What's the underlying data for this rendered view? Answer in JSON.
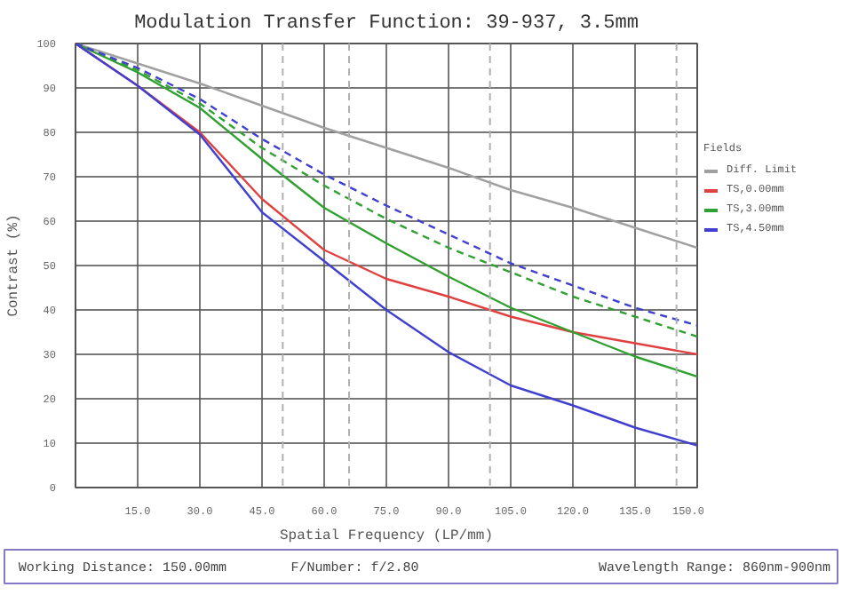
{
  "chart_data": {
    "type": "line",
    "title": "Modulation Transfer Function: 39-937, 3.5mm",
    "xlabel": "Spatial Frequency (LP/mm)",
    "ylabel": "Contrast (%)",
    "legend_title": "Fields",
    "x": [
      0,
      15,
      30,
      45,
      60,
      75,
      90,
      105,
      120,
      135,
      150
    ],
    "series": [
      {
        "name": "Diff. Limit",
        "color": "#a0a0a0",
        "line_style": "solid",
        "values": [
          100,
          95.5,
          91,
          86,
          81,
          76.5,
          72,
          67,
          63,
          58.5,
          54
        ]
      },
      {
        "name": "TS,0.00mm",
        "color": "#e04040",
        "line_style": "solid",
        "values": [
          100,
          90.5,
          80,
          65,
          53.5,
          47,
          43,
          38.5,
          35,
          32.5,
          30
        ]
      },
      {
        "name": "TS,3.00mm",
        "color": "#30a030",
        "line_style": "solid",
        "values": [
          100,
          93.5,
          85.5,
          74,
          63,
          55,
          47.5,
          40.5,
          35,
          29.5,
          25
        ]
      },
      {
        "color": "#30a030",
        "line_style": "dashed",
        "values": [
          100,
          94,
          86.5,
          76.5,
          68,
          60.5,
          54,
          48.5,
          43,
          38.5,
          34
        ]
      },
      {
        "name": "TS,4.50mm",
        "color": "#4040d0",
        "line_style": "solid",
        "values": [
          100,
          90.5,
          79.5,
          62,
          51,
          40,
          30.5,
          23,
          18.5,
          13.5,
          9.5
        ]
      },
      {
        "color": "#4040d0",
        "line_style": "dashed",
        "values": [
          100,
          94.5,
          87.5,
          78.5,
          70.5,
          63.5,
          57,
          50.5,
          45.5,
          40.5,
          36.5
        ]
      }
    ],
    "xlim": [
      0,
      150
    ],
    "ylim": [
      0,
      100
    ],
    "xticks": [
      {
        "value": 15,
        "label": "15.0"
      },
      {
        "value": 30,
        "label": "30.0"
      },
      {
        "value": 45,
        "label": "45.0"
      },
      {
        "value": 60,
        "label": "60.0"
      },
      {
        "value": 75,
        "label": "75.0"
      },
      {
        "value": 90,
        "label": "90.0"
      },
      {
        "value": 105,
        "label": "105.0"
      },
      {
        "value": 120,
        "label": "120.0"
      },
      {
        "value": 135,
        "label": "135.0"
      },
      {
        "value": 150,
        "label": "150.0"
      }
    ],
    "yticks": [
      0,
      10,
      20,
      30,
      40,
      50,
      60,
      70,
      80,
      90,
      100
    ],
    "ref_lines": [
      {
        "axis": "x",
        "value": 50,
        "color": "#b0b0b0",
        "line_style": "dashed"
      },
      {
        "axis": "x",
        "value": 66,
        "color": "#b0b0b0",
        "line_style": "dashed"
      },
      {
        "axis": "x",
        "value": 100,
        "color": "#b0b0b0",
        "line_style": "dashed"
      },
      {
        "axis": "x",
        "value": 145,
        "color": "#b0b0b0",
        "line_style": "dashed"
      }
    ],
    "annotations": [
      "Working Distance: 150.00mm",
      "F/Number: f/2.80",
      "Wavelength Range: 860nm-900nm"
    ],
    "grid": true,
    "legend": "right",
    "marker": "none"
  }
}
